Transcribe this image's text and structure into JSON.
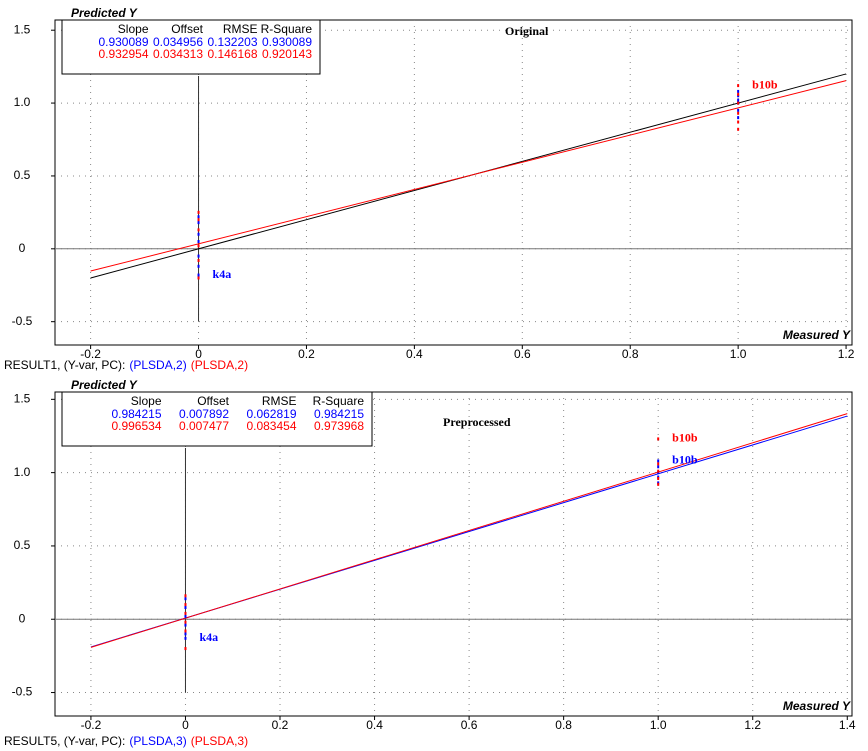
{
  "chart_data": [
    {
      "type": "scatter",
      "title": "Original",
      "x_label": "Measured Y",
      "y_label": "Predicted Y",
      "result_label": "RESULT1, (Y-var, PC):",
      "xlim": [
        -0.266,
        1.211
      ],
      "ylim": [
        -0.66,
        1.57
      ],
      "xticks": [
        -0.2,
        0,
        0.2,
        0.4,
        0.6,
        0.8,
        {
          "value": 1,
          "label": "1.0"
        },
        1.2
      ],
      "yticks": [
        -0.5,
        0,
        0.5,
        {
          "value": 1,
          "label": "1.0"
        },
        1.5
      ],
      "grid": true,
      "target_line": true,
      "stats_header": [
        "Slope",
        "Offset",
        "RMSE",
        "R-Square"
      ],
      "series": [
        {
          "name": "(PLSDA,2)",
          "color": "#0000ff",
          "fit_line": false,
          "stats": [
            0.930089,
            0.034956,
            0.132203,
            0.930089
          ],
          "x": [
            0,
            0,
            0,
            0,
            0,
            0,
            0,
            1,
            1,
            1,
            1,
            1,
            1
          ],
          "values": [
            0.22,
            0.18,
            0.1,
            0.05,
            -0.05,
            -0.12,
            -0.18,
            1.08,
            1.05,
            1.02,
            1.0,
            0.95,
            0.9
          ],
          "labels": [
            null,
            null,
            null,
            null,
            null,
            null,
            "k4a",
            null,
            null,
            null,
            null,
            null,
            null
          ]
        },
        {
          "name": "(PLSDA,2)",
          "color": "#ff0000",
          "fit_line": true,
          "stats": [
            0.932954,
            0.034313,
            0.146168,
            0.920143
          ],
          "x": [
            0,
            0,
            0,
            0,
            0,
            0,
            1,
            1,
            1,
            1,
            1,
            1
          ],
          "values": [
            0.25,
            0.2,
            0.13,
            0.02,
            -0.08,
            -0.2,
            1.12,
            1.06,
            1.0,
            0.93,
            0.87,
            0.82
          ],
          "labels": [
            null,
            null,
            null,
            null,
            null,
            null,
            "b10b",
            null,
            null,
            null,
            null,
            null
          ]
        }
      ]
    },
    {
      "type": "scatter",
      "title": "Preprocessed",
      "x_label": "Measured Y",
      "y_label": "Predicted Y",
      "result_label": "RESULT5, (Y-var, PC):",
      "xlim": [
        -0.276,
        1.41
      ],
      "ylim": [
        -0.66,
        1.55
      ],
      "xticks": [
        -0.2,
        0,
        0.2,
        0.4,
        0.6,
        0.8,
        {
          "value": 1,
          "label": "1.0"
        },
        1.2,
        1.4
      ],
      "yticks": [
        -0.5,
        0,
        0.5,
        {
          "value": 1,
          "label": "1.0"
        },
        1.5
      ],
      "grid": true,
      "target_line": false,
      "stats_header": [
        "Slope",
        "Offset",
        "RMSE",
        "R-Square"
      ],
      "series": [
        {
          "name": "(PLSDA,3)",
          "color": "#0000ff",
          "fit_line": true,
          "stats": [
            0.984215,
            0.007892,
            0.062819,
            0.984215
          ],
          "x": [
            0,
            0,
            0,
            0,
            0,
            0,
            1,
            1,
            1,
            1,
            1
          ],
          "values": [
            0.14,
            0.08,
            0.02,
            -0.04,
            -0.1,
            -0.13,
            1.08,
            1.04,
            1.0,
            0.97,
            0.93
          ],
          "labels": [
            null,
            null,
            null,
            null,
            null,
            "k4a",
            "b10b",
            null,
            null,
            null,
            null
          ]
        },
        {
          "name": "(PLSDA,3)",
          "color": "#ff0000",
          "fit_line": true,
          "stats": [
            0.996534,
            0.007477,
            0.083454,
            0.973968
          ],
          "x": [
            0,
            0,
            0,
            0,
            0,
            0,
            1,
            1,
            1,
            1,
            1
          ],
          "values": [
            0.16,
            0.1,
            0.04,
            -0.02,
            -0.08,
            -0.2,
            1.23,
            1.06,
            1.01,
            0.96,
            0.92
          ],
          "labels": [
            null,
            null,
            null,
            null,
            null,
            null,
            "b10b",
            null,
            null,
            null,
            null
          ]
        }
      ]
    }
  ]
}
